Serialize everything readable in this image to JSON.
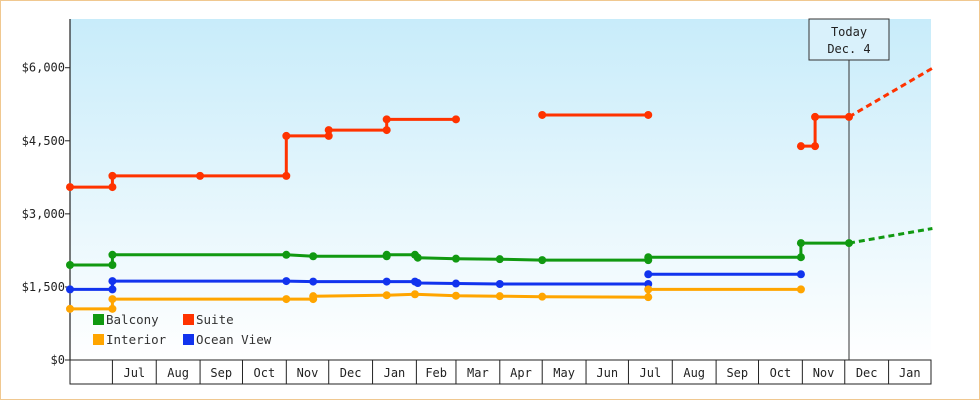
{
  "chart_data": {
    "type": "line",
    "step": true,
    "title": "",
    "xlabel": "",
    "ylabel": "",
    "x_axis": {
      "start": "2016-06-01",
      "end": "2018-01-31",
      "months": [
        {
          "label": "",
          "start": "2016-06-01"
        },
        {
          "label": "Jul",
          "start": "2016-07-01"
        },
        {
          "label": "Aug",
          "start": "2016-08-01"
        },
        {
          "label": "Sep",
          "start": "2016-09-01"
        },
        {
          "label": "Oct",
          "start": "2016-10-01"
        },
        {
          "label": "Nov",
          "start": "2016-11-01"
        },
        {
          "label": "Dec",
          "start": "2016-12-01"
        },
        {
          "label": "Jan",
          "start": "2017-01-01"
        },
        {
          "label": "Feb",
          "start": "2017-02-01"
        },
        {
          "label": "Mar",
          "start": "2017-03-01"
        },
        {
          "label": "Apr",
          "start": "2017-04-01"
        },
        {
          "label": "May",
          "start": "2017-05-01"
        },
        {
          "label": "Jun",
          "start": "2017-06-01"
        },
        {
          "label": "Jul",
          "start": "2017-07-01"
        },
        {
          "label": "Aug",
          "start": "2017-08-01"
        },
        {
          "label": "Sep",
          "start": "2017-09-01"
        },
        {
          "label": "Oct",
          "start": "2017-10-01"
        },
        {
          "label": "Nov",
          "start": "2017-11-01"
        },
        {
          "label": "Dec",
          "start": "2017-12-01"
        },
        {
          "label": "Jan",
          "start": "2018-01-01"
        }
      ]
    },
    "y_axis": {
      "range": [
        0,
        7000
      ],
      "ticks": [
        {
          "value": 0,
          "label": "$0"
        },
        {
          "value": 1500,
          "label": "$1,500"
        },
        {
          "value": 3000,
          "label": "$3,000"
        },
        {
          "value": 4500,
          "label": "$4,500"
        },
        {
          "value": 6000,
          "label": "$6,000"
        }
      ]
    },
    "today": {
      "date": "2017-12-04",
      "label_line1": "Today",
      "label_line2": "Dec. 4"
    },
    "legend": {
      "position": "bottom-left",
      "entries": [
        {
          "name": "Balcony",
          "color": "#119911"
        },
        {
          "name": "Suite",
          "color": "#ff3300"
        },
        {
          "name": "Interior",
          "color": "#ffa500"
        },
        {
          "name": "Ocean View",
          "color": "#1133ee"
        }
      ]
    },
    "series": [
      {
        "name": "Suite",
        "color": "#ff3300",
        "segments": [
          {
            "points": [
              [
                "2016-06-01",
                3550
              ],
              [
                "2016-07-01",
                3550
              ],
              [
                "2016-07-01",
                3780
              ],
              [
                "2016-09-01",
                3780
              ],
              [
                "2016-11-01",
                3780
              ],
              [
                "2016-11-01",
                4600
              ],
              [
                "2016-12-01",
                4600
              ],
              [
                "2016-12-01",
                4720
              ],
              [
                "2017-01-11",
                4720
              ],
              [
                "2017-01-11",
                4940
              ],
              [
                "2017-03-01",
                4940
              ]
            ]
          },
          {
            "points": [
              [
                "2017-05-01",
                5030
              ],
              [
                "2017-07-15",
                5030
              ]
            ]
          },
          {
            "points": [
              [
                "2017-10-31",
                4390
              ],
              [
                "2017-11-10",
                4390
              ],
              [
                "2017-11-10",
                4990
              ],
              [
                "2017-12-04",
                4990
              ]
            ]
          }
        ],
        "projection": [
          [
            "2017-12-04",
            4990
          ],
          [
            "2018-02-01",
            5990
          ]
        ]
      },
      {
        "name": "Balcony",
        "color": "#119911",
        "segments": [
          {
            "points": [
              [
                "2016-06-01",
                1950
              ],
              [
                "2016-07-01",
                1950
              ],
              [
                "2016-07-01",
                2160
              ],
              [
                "2016-11-01",
                2160
              ],
              [
                "2016-11-20",
                2130
              ],
              [
                "2017-01-11",
                2130
              ],
              [
                "2017-01-11",
                2160
              ],
              [
                "2017-01-31",
                2160
              ],
              [
                "2017-02-02",
                2100
              ],
              [
                "2017-03-01",
                2080
              ],
              [
                "2017-04-01",
                2070
              ],
              [
                "2017-05-01",
                2050
              ],
              [
                "2017-07-15",
                2050
              ],
              [
                "2017-07-15",
                2110
              ],
              [
                "2017-10-31",
                2110
              ],
              [
                "2017-10-31",
                2400
              ],
              [
                "2017-12-04",
                2400
              ]
            ]
          }
        ],
        "projection": [
          [
            "2017-12-04",
            2400
          ],
          [
            "2018-02-01",
            2700
          ]
        ]
      },
      {
        "name": "Ocean View",
        "color": "#1133ee",
        "segments": [
          {
            "points": [
              [
                "2016-06-01",
                1450
              ],
              [
                "2016-07-01",
                1450
              ],
              [
                "2016-07-01",
                1620
              ],
              [
                "2016-11-01",
                1620
              ],
              [
                "2016-11-20",
                1610
              ],
              [
                "2017-01-11",
                1610
              ],
              [
                "2017-01-31",
                1610
              ],
              [
                "2017-02-02",
                1580
              ],
              [
                "2017-03-01",
                1570
              ],
              [
                "2017-04-01",
                1560
              ],
              [
                "2017-07-15",
                1560
              ]
            ]
          },
          {
            "points": [
              [
                "2017-07-15",
                1760
              ],
              [
                "2017-10-31",
                1760
              ]
            ]
          }
        ],
        "projection": null
      },
      {
        "name": "Interior",
        "color": "#ffa500",
        "segments": [
          {
            "points": [
              [
                "2016-06-01",
                1050
              ],
              [
                "2016-07-01",
                1050
              ],
              [
                "2016-07-01",
                1250
              ],
              [
                "2016-11-01",
                1250
              ],
              [
                "2016-11-20",
                1250
              ],
              [
                "2016-11-20",
                1310
              ],
              [
                "2017-01-11",
                1330
              ],
              [
                "2017-01-31",
                1350
              ],
              [
                "2017-03-01",
                1320
              ],
              [
                "2017-04-01",
                1310
              ],
              [
                "2017-05-01",
                1300
              ],
              [
                "2017-07-15",
                1290
              ],
              [
                "2017-07-15",
                1450
              ],
              [
                "2017-10-31",
                1450
              ]
            ]
          }
        ],
        "projection": null
      }
    ]
  }
}
